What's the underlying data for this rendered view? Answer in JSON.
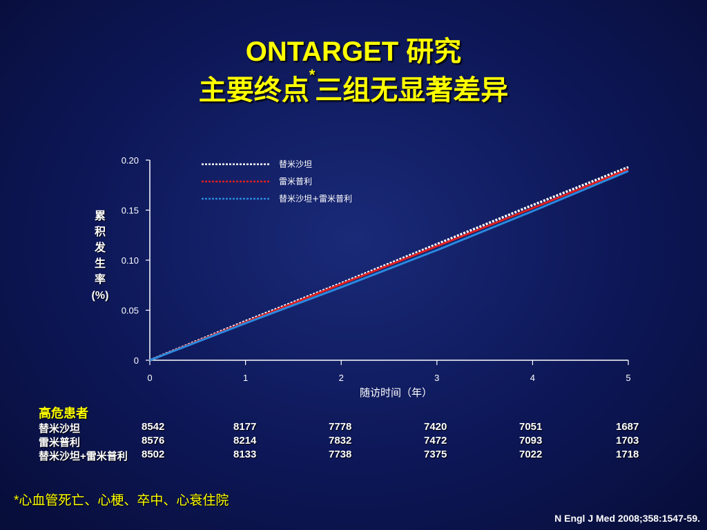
{
  "title_line1": "ONTARGET 研究",
  "title_line2_main": "主要终点",
  "title_line2_marker": "*",
  "title_line2_rest": "三组无显著差异",
  "chart_data": {
    "type": "line",
    "title": "",
    "xlabel": "随访时间（年）",
    "ylabel_chars": [
      "累",
      "积",
      "发",
      "生",
      "率",
      "(%)"
    ],
    "xlim": [
      0,
      5
    ],
    "ylim": [
      0,
      0.2
    ],
    "x_ticks": [
      "0",
      "1",
      "2",
      "3",
      "4",
      "5"
    ],
    "y_ticks": [
      "0",
      "0.05",
      "0.10",
      "0.15",
      "0.20"
    ],
    "legend_position": "top-left",
    "series": [
      {
        "name": "替米沙坦",
        "color": "#ffffff",
        "x": [
          0,
          1,
          2,
          3,
          4,
          5
        ],
        "y": [
          0,
          0.039,
          0.077,
          0.116,
          0.155,
          0.193
        ]
      },
      {
        "name": "雷米普利",
        "color": "#e02020",
        "x": [
          0,
          1,
          2,
          3,
          4,
          5
        ],
        "y": [
          0,
          0.038,
          0.076,
          0.114,
          0.152,
          0.191
        ]
      },
      {
        "name": "替米沙坦+雷米普利",
        "color": "#2a8ae0",
        "x": [
          0,
          1,
          2,
          3,
          4,
          5
        ],
        "y": [
          0,
          0.037,
          0.073,
          0.11,
          0.149,
          0.189
        ]
      }
    ]
  },
  "risk_table": {
    "header": "高危患者",
    "rows": [
      {
        "label": "替米沙坦",
        "values": [
          "8542",
          "8177",
          "7778",
          "7420",
          "7051",
          "1687"
        ]
      },
      {
        "label": "雷米普利",
        "values": [
          "8576",
          "8214",
          "7832",
          "7472",
          "7093",
          "1703"
        ]
      },
      {
        "label": "替米沙坦+雷米普利",
        "values": [
          "8502",
          "8133",
          "7738",
          "7375",
          "7022",
          "1718"
        ]
      }
    ]
  },
  "footnote": "*心血管死亡、心梗、卒中、心衰住院",
  "citation": "N Engl J Med 2008;358:1547-59."
}
